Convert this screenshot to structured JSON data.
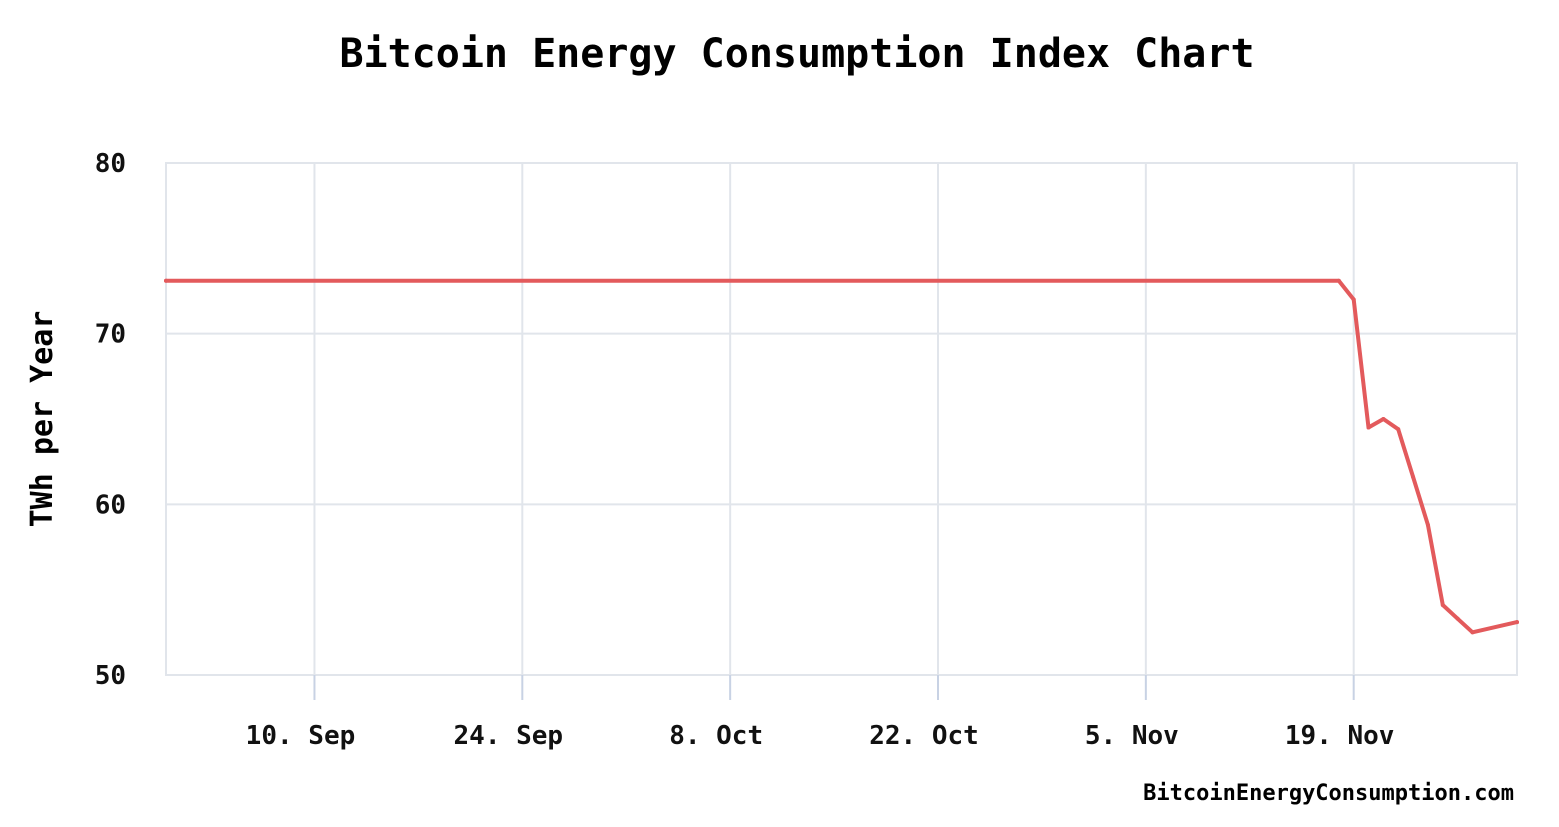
{
  "chart_data": {
    "type": "line",
    "title": "Bitcoin Energy Consumption Index Chart",
    "xlabel": "",
    "ylabel": "TWh per Year",
    "credit": "BitcoinEnergyConsumption.com",
    "ylim": [
      50,
      80
    ],
    "yticks": [
      "50",
      "60",
      "70",
      "80"
    ],
    "xlim": [
      "2018-08-31",
      "2018-11-30"
    ],
    "xticks": [
      {
        "label": "10. Sep",
        "date": "2018-09-10"
      },
      {
        "label": "24. Sep",
        "date": "2018-09-24"
      },
      {
        "label": "8. Oct",
        "date": "2018-10-08"
      },
      {
        "label": "22. Oct",
        "date": "2018-10-22"
      },
      {
        "label": "5. Nov",
        "date": "2018-11-05"
      },
      {
        "label": "19. Nov",
        "date": "2018-11-19"
      }
    ],
    "grid": true,
    "legend": "none",
    "series": [
      {
        "color": "#e35a5c",
        "points": [
          {
            "x": "2018-08-31",
            "y": 73.1
          },
          {
            "x": "2018-11-18",
            "y": 73.1
          },
          {
            "x": "2018-11-19",
            "y": 72.0
          },
          {
            "x": "2018-11-20",
            "y": 64.5
          },
          {
            "x": "2018-11-21",
            "y": 65.0
          },
          {
            "x": "2018-11-22",
            "y": 64.4
          },
          {
            "x": "2018-11-23",
            "y": 61.6
          },
          {
            "x": "2018-11-24",
            "y": 58.8
          },
          {
            "x": "2018-11-25",
            "y": 54.1
          },
          {
            "x": "2018-11-26",
            "y": 53.3
          },
          {
            "x": "2018-11-27",
            "y": 52.5
          },
          {
            "x": "2018-11-30",
            "y": 53.1
          }
        ]
      }
    ]
  }
}
